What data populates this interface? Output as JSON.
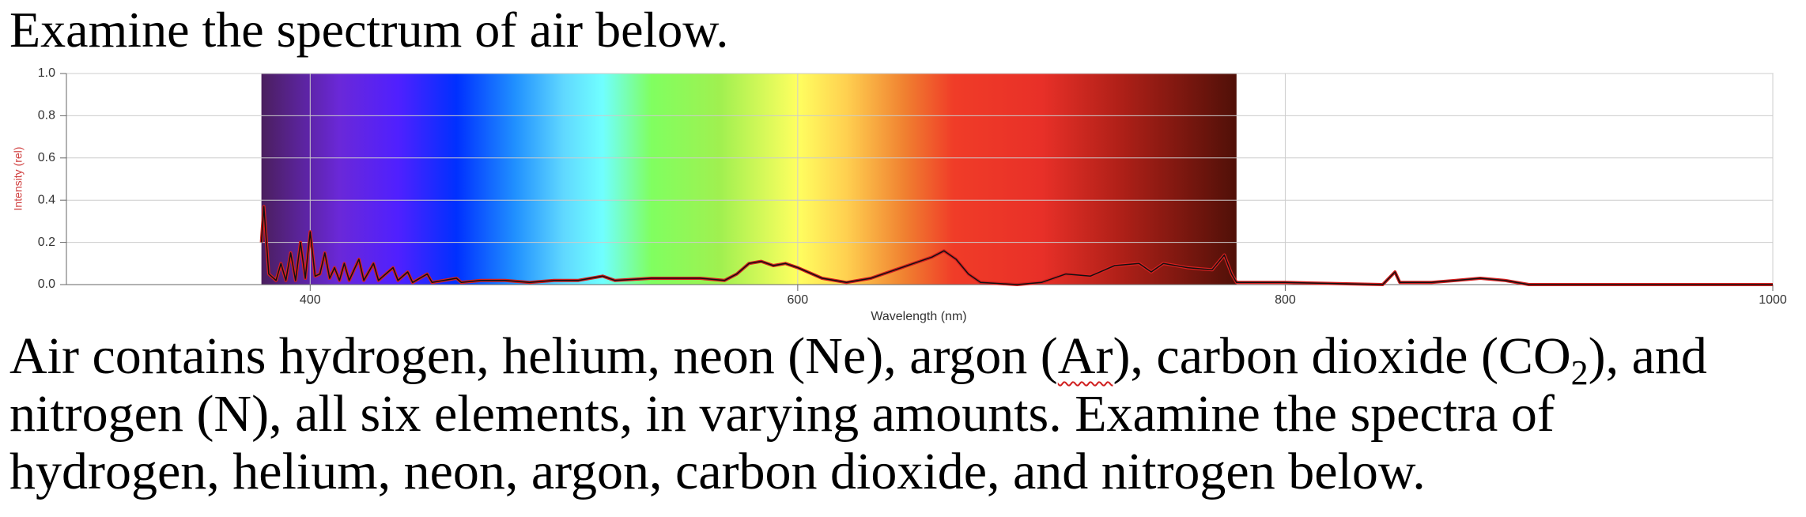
{
  "heading": "Examine the spectrum of air below.",
  "chart_data": {
    "type": "line",
    "x_label": "Wavelength (nm)",
    "y_label": "Intensity (rel)",
    "xlim": [
      300,
      1000
    ],
    "ylim": [
      0,
      1
    ],
    "xticks": [
      400,
      600,
      800,
      1000
    ],
    "yticks": [
      {
        "value": 0,
        "label": "0.0"
      },
      0.2,
      0.4,
      0.6,
      0.8,
      {
        "value": 1,
        "label": "1.0"
      }
    ],
    "grid": true,
    "series": [
      {
        "color": "#d42020",
        "x": [
          380,
          381,
          383,
          386,
          388,
          390,
          392,
          394,
          396,
          398,
          400,
          402,
          404,
          406,
          408,
          410,
          412,
          414,
          416,
          420,
          422,
          426,
          428,
          434,
          436,
          440,
          442,
          448,
          450,
          460,
          462,
          470,
          480,
          490,
          500,
          510,
          520,
          525,
          540,
          560,
          570,
          575,
          580,
          585,
          590,
          595,
          600,
          610,
          620,
          630,
          640,
          650,
          655,
          660,
          665,
          670,
          675,
          690,
          700,
          710,
          720,
          730,
          740,
          745,
          750,
          760,
          770,
          775,
          778,
          780,
          800,
          840,
          845,
          847,
          860,
          870,
          880,
          890,
          900,
          1000
        ],
        "values": [
          0.2,
          0.37,
          0.05,
          0.02,
          0.1,
          0.02,
          0.15,
          0.02,
          0.2,
          0.03,
          0.25,
          0.04,
          0.05,
          0.15,
          0.03,
          0.08,
          0.02,
          0.1,
          0.02,
          0.12,
          0.02,
          0.1,
          0.02,
          0.08,
          0.02,
          0.06,
          0.01,
          0.05,
          0.01,
          0.03,
          0.01,
          0.02,
          0.02,
          0.01,
          0.02,
          0.02,
          0.04,
          0.02,
          0.03,
          0.03,
          0.02,
          0.05,
          0.1,
          0.11,
          0.09,
          0.1,
          0.08,
          0.03,
          0.01,
          0.03,
          0.07,
          0.11,
          0.13,
          0.16,
          0.12,
          0.05,
          0.01,
          0,
          0.01,
          0.05,
          0.04,
          0.09,
          0.1,
          0.06,
          0.1,
          0.08,
          0.07,
          0.14,
          0.05,
          0.01,
          0.01,
          0,
          0.06,
          0.01,
          0.01,
          0.02,
          0.03,
          0.02,
          0,
          0
        ]
      }
    ]
  },
  "paragraph": {
    "line1": [
      "Air contains hydrogen, helium, neon (Ne), argon (",
      "Ar",
      "), carbon dioxide (CO",
      "2",
      "), and"
    ],
    "line2": "nitrogen (N), all six elements, in varying amounts. Examine the spectra of",
    "line3": "hydrogen, helium, neon, argon, carbon dioxide, and nitrogen below."
  }
}
